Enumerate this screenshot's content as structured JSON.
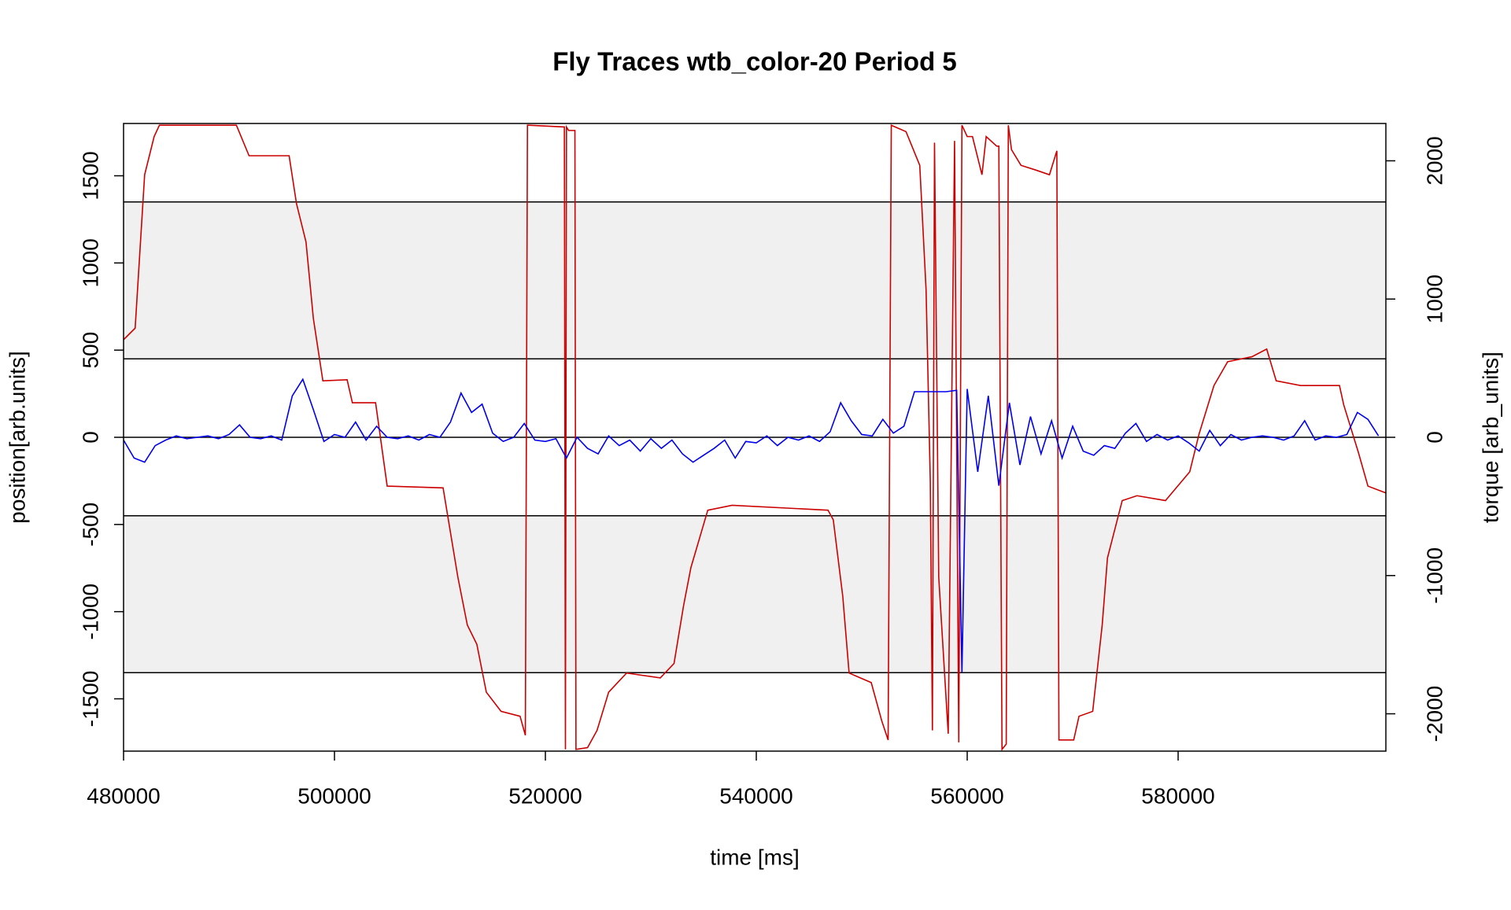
{
  "chart_data": {
    "type": "line",
    "title": "Fly Traces wtb_color-20 Period 5",
    "xlabel": "time [ms]",
    "ylabel": "position[arb.units]",
    "y2label": "torque [arb_units]",
    "xlim": [
      480000,
      599700
    ],
    "xticks": [
      480000,
      500000,
      520000,
      540000,
      560000,
      580000
    ],
    "ylim": [
      -1800,
      1800
    ],
    "yticks": [
      -1500,
      -1000,
      -500,
      0,
      500,
      1000,
      1500
    ],
    "y2lim": [
      -2270,
      2270
    ],
    "y2ticks": [
      -2000,
      -1000,
      0,
      1000,
      2000
    ],
    "bands": [
      [
        450,
        1350
      ],
      [
        -1350,
        -450
      ]
    ],
    "band_color": "#f0f0f0",
    "hlines": [
      -1350,
      -450,
      0,
      450,
      1350
    ],
    "series": [
      {
        "name": "position",
        "color": "#cc0000",
        "axis": "y",
        "x": [
          480000,
          481100,
          481550,
          482000,
          482900,
          483400,
          490700,
          491900,
          495700,
          496400,
          497300,
          498000,
          498900,
          501200,
          501700,
          503900,
          505000,
          510300,
          510800,
          511700,
          512600,
          513500,
          514400,
          515800,
          517600,
          518100,
          518300,
          518400,
          521800,
          521900,
          522000,
          522200,
          522800,
          522900,
          524000,
          524900,
          526000,
          527700,
          530900,
          532200,
          533100,
          533800,
          535400,
          537700,
          546800,
          547300,
          548200,
          548800,
          550900,
          551900,
          552500,
          552800,
          554200,
          555500,
          556100,
          556500,
          556700,
          556900,
          557300,
          558200,
          558800,
          559200,
          559500,
          560000,
          560500,
          561400,
          561800,
          562800,
          563000,
          563300,
          563700,
          563900,
          564200,
          565100,
          566500,
          567800,
          568500,
          568700,
          570100,
          570600,
          571900,
          572800,
          573300,
          574700,
          576100,
          578800,
          581100,
          582000,
          583400,
          584700,
          587000,
          588400,
          589300,
          591600,
          595300,
          595700,
          597100,
          598000,
          599700
        ],
        "values": [
          560,
          626,
          1066,
          1506,
          1725,
          1790,
          1790,
          1615,
          1615,
          1340,
          1121,
          681,
          324,
          330,
          198,
          198,
          -280,
          -290,
          -473,
          -802,
          -1077,
          -1187,
          -1462,
          -1572,
          -1600,
          -1709,
          1790,
          1790,
          1780,
          -1790,
          1780,
          1760,
          1760,
          -1790,
          -1780,
          -1681,
          -1462,
          -1352,
          -1380,
          -1297,
          -967,
          -747,
          -418,
          -390,
          -418,
          -473,
          -912,
          -1352,
          -1407,
          -1627,
          -1736,
          1790,
          1753,
          1560,
          846,
          -253,
          -1681,
          1690,
          -802,
          -1700,
          1700,
          -1750,
          1790,
          1725,
          1725,
          1506,
          1725,
          1670,
          1670,
          -1790,
          -1760,
          1790,
          1650,
          1560,
          1533,
          1506,
          1643,
          -1736,
          -1736,
          -1600,
          -1572,
          -1077,
          -692,
          -363,
          -335,
          -363,
          -198,
          22,
          297,
          434,
          462,
          506,
          324,
          297,
          297,
          187,
          -88,
          -280,
          -319
        ]
      },
      {
        "name": "torque",
        "color": "#0000ee",
        "axis": "y2",
        "x": [
          480000,
          481000,
          482000,
          483000,
          484000,
          485000,
          486000,
          487000,
          488000,
          489000,
          490000,
          491000,
          492000,
          493000,
          494000,
          495000,
          496000,
          497000,
          498000,
          499000,
          500000,
          501000,
          502000,
          503000,
          504000,
          505000,
          506000,
          507000,
          508000,
          509000,
          510000,
          511000,
          512000,
          513000,
          514000,
          515000,
          516000,
          517000,
          518000,
          519000,
          520000,
          521000,
          522000,
          523000,
          524000,
          525000,
          526000,
          527000,
          528000,
          529000,
          530000,
          531000,
          532000,
          533000,
          534000,
          535000,
          536000,
          537000,
          538000,
          539000,
          540000,
          541000,
          542000,
          543000,
          544000,
          545000,
          546000,
          547000,
          548000,
          549000,
          550000,
          551000,
          552000,
          553000,
          554000,
          555000,
          556000,
          557000,
          558000,
          559000,
          559500,
          560000,
          561000,
          562000,
          563000,
          564000,
          565000,
          566000,
          567000,
          568000,
          569000,
          570000,
          571000,
          572000,
          573000,
          574000,
          575000,
          576000,
          577000,
          578000,
          579000,
          580000,
          581000,
          582000,
          583000,
          584000,
          585000,
          586000,
          587000,
          588000,
          589000,
          590000,
          591000,
          592000,
          593000,
          594000,
          595000,
          596000,
          597000,
          598000,
          599000
        ],
        "values": [
          -20,
          -150,
          -180,
          -60,
          -20,
          10,
          -10,
          0,
          10,
          -10,
          20,
          90,
          0,
          -10,
          10,
          -20,
          300,
          420,
          200,
          -30,
          20,
          0,
          110,
          -20,
          80,
          0,
          -10,
          10,
          -20,
          20,
          0,
          110,
          320,
          180,
          240,
          30,
          -30,
          0,
          100,
          -20,
          -30,
          -10,
          -150,
          0,
          -80,
          -120,
          10,
          -60,
          -20,
          -100,
          -10,
          -80,
          -20,
          -120,
          -180,
          -130,
          -80,
          -20,
          -150,
          -30,
          -40,
          10,
          -60,
          0,
          -20,
          10,
          -30,
          40,
          250,
          120,
          20,
          10,
          130,
          30,
          80,
          330,
          330,
          330,
          330,
          340,
          -1700,
          350,
          -250,
          300,
          -350,
          250,
          -200,
          150,
          -120,
          120,
          -150,
          80,
          -100,
          -130,
          -60,
          -80,
          30,
          100,
          -30,
          20,
          -20,
          10,
          -40,
          -100,
          50,
          -60,
          20,
          -20,
          0,
          10,
          0,
          -20,
          10,
          120,
          -20,
          10,
          0,
          20,
          180,
          130,
          10
        ]
      }
    ]
  }
}
